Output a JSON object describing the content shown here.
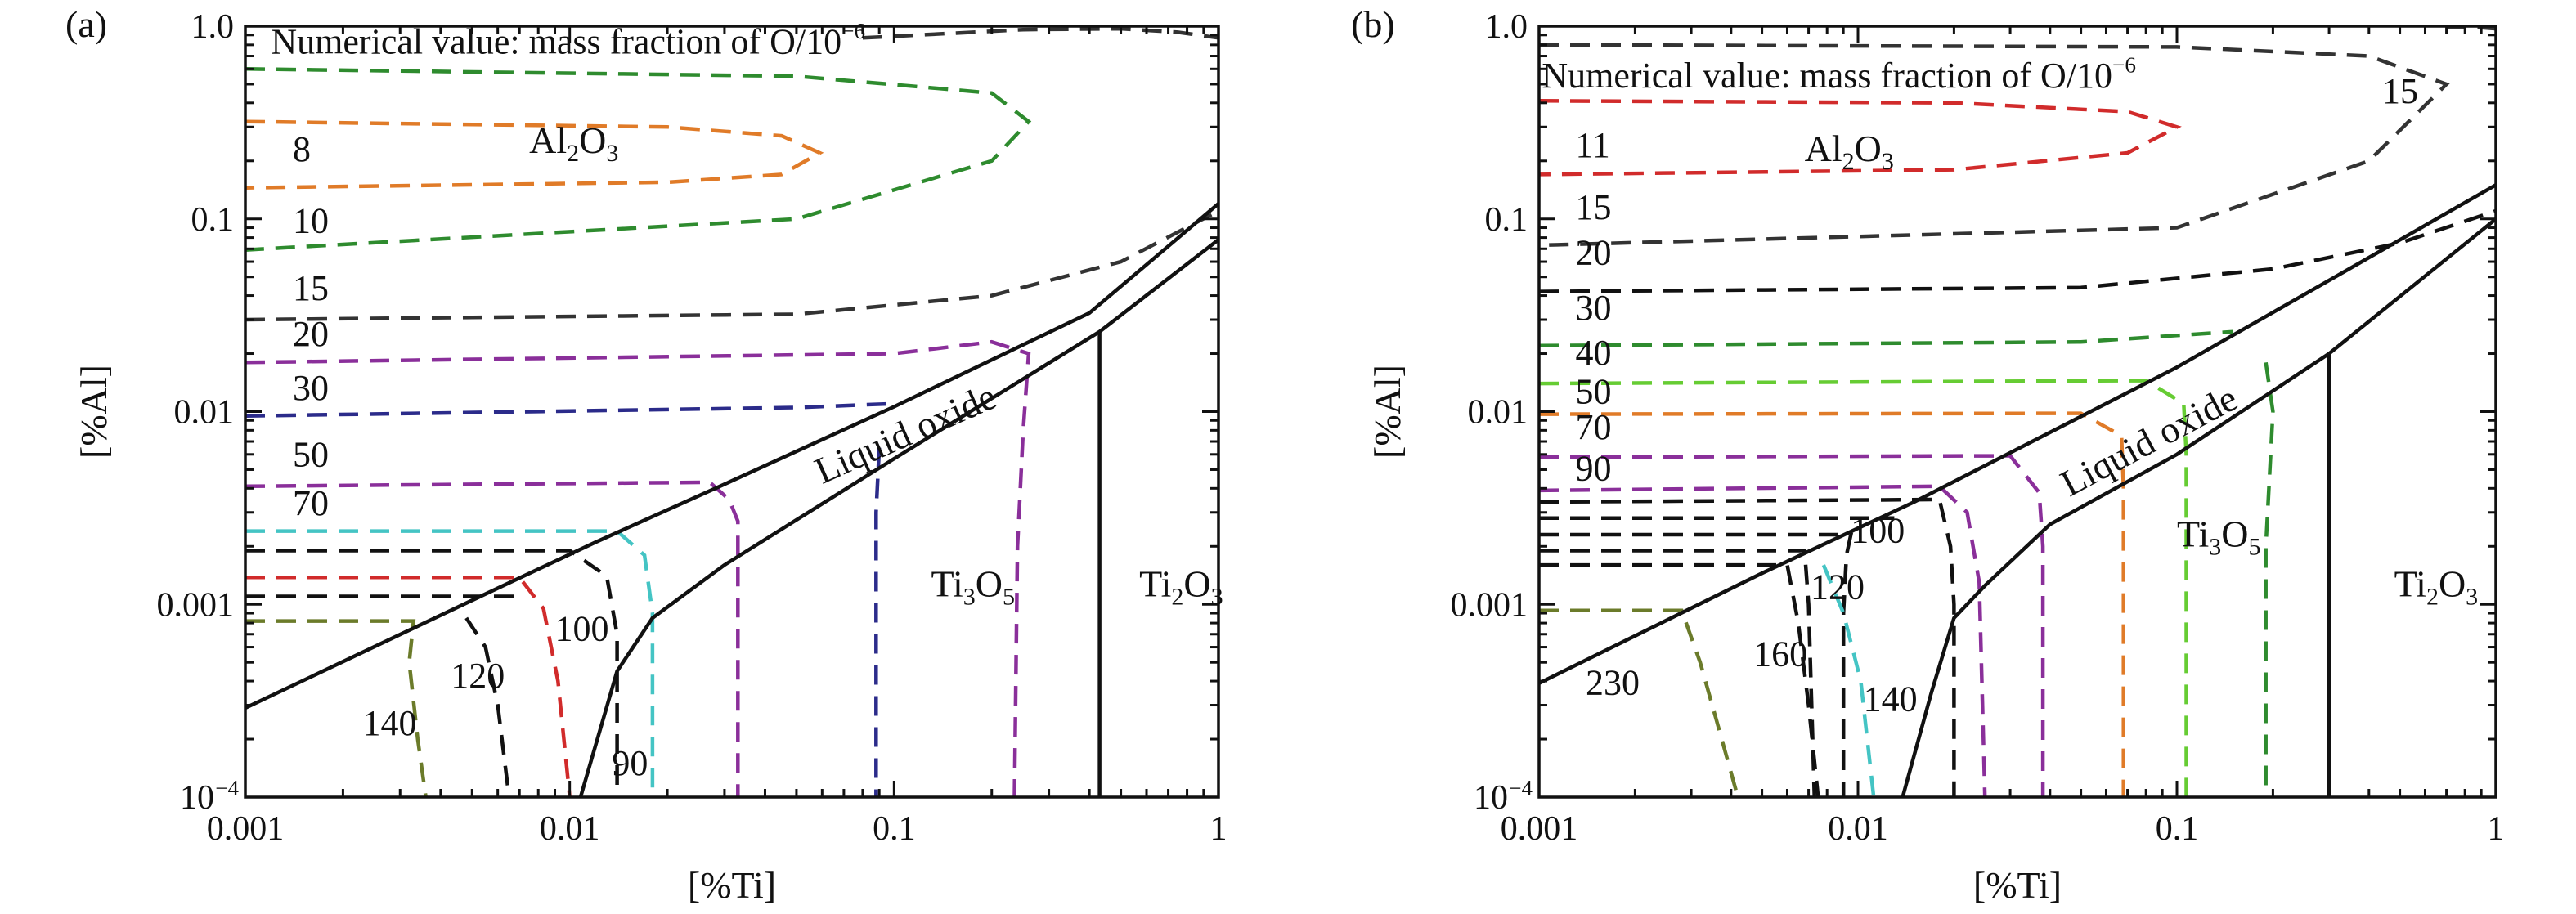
{
  "chart_data": [
    {
      "panel_label": "(a)",
      "type": "line",
      "subtype": "predominance-diagram-with-iso-oxygen-contours",
      "xlabel": "[%Ti]",
      "ylabel": "[%Al]",
      "xscale": "log",
      "yscale": "log",
      "xlim": [
        0.001,
        1
      ],
      "ylim": [
        0.0001,
        1
      ],
      "xticks": [
        {
          "value": 0.001,
          "label": "0.001"
        },
        {
          "value": 0.01,
          "label": "0.01"
        },
        {
          "value": 0.1,
          "label": "0.1"
        },
        {
          "value": 1,
          "label": "1"
        }
      ],
      "yticks": [
        {
          "value": 0.0001,
          "label": "10",
          "sup": "−4"
        },
        {
          "value": 0.001,
          "label": "0.001"
        },
        {
          "value": 0.01,
          "label": "0.01"
        },
        {
          "value": 0.1,
          "label": "0.1"
        },
        {
          "value": 1,
          "label": "1.0"
        }
      ],
      "annotation": {
        "text": "Numerical value: mass fraction of O/10",
        "sup": "−6",
        "x": 0.0012,
        "y": 0.72
      },
      "regions": [
        {
          "parts": [
            [
              "Al",
              ""
            ],
            [
              "2",
              "sub"
            ],
            [
              "O",
              ""
            ],
            [
              "3",
              "sub"
            ]
          ],
          "x": 0.0075,
          "y": 0.22
        },
        {
          "parts": [
            [
              "Liquid oxide",
              ""
            ]
          ],
          "x": 0.06,
          "y": 0.0042,
          "rotate": -24
        },
        {
          "parts": [
            [
              "Ti",
              ""
            ],
            [
              "3",
              "sub"
            ],
            [
              "O",
              ""
            ],
            [
              "5",
              "sub"
            ]
          ],
          "x": 0.13,
          "y": 0.0011
        },
        {
          "parts": [
            [
              "Ti",
              ""
            ],
            [
              "2",
              "sub"
            ],
            [
              "O",
              ""
            ],
            [
              "3",
              "sub"
            ]
          ],
          "x": 0.57,
          "y": 0.0011
        }
      ],
      "boundaries": [
        {
          "name": "upper",
          "x": [
            0.001,
            0.005,
            0.012,
            0.03,
            0.1,
            0.4,
            1
          ],
          "y": [
            0.00029,
            0.00105,
            0.0021,
            0.0042,
            0.0106,
            0.0325,
            0.12
          ]
        },
        {
          "name": "lower",
          "x": [
            0.0108,
            0.014,
            0.018,
            0.03,
            0.1,
            0.43,
            1
          ],
          "y": [
            0.0001,
            0.00045,
            0.00085,
            0.0016,
            0.0057,
            0.026,
            0.078
          ]
        },
        {
          "name": "Ti3O5-Ti2O3",
          "x": [
            0.43,
            0.43
          ],
          "y": [
            0.0001,
            0.026
          ]
        }
      ],
      "contours": [
        {
          "label": "8",
          "color": "#e07b28",
          "x": [
            0.001,
            0.02,
            0.045,
            0.059,
            0.045,
            0.02,
            0.001
          ],
          "y": [
            0.32,
            0.3,
            0.27,
            0.22,
            0.17,
            0.155,
            0.145
          ]
        },
        {
          "label": "",
          "color": "#2e8b2e",
          "x": [
            0.001,
            0.05,
            0.2,
            0.26,
            0.2,
            0.05,
            0.001
          ],
          "y": [
            0.6,
            0.55,
            0.45,
            0.32,
            0.2,
            0.1,
            0.069
          ]
        },
        {
          "label": "",
          "color": "#333333",
          "x": [
            0.08,
            0.25,
            0.5,
            0.75,
            1.0
          ],
          "y": [
            0.87,
            0.96,
            0.97,
            0.93,
            0.87
          ]
        },
        {
          "label": "10",
          "color": "#2e8b2e",
          "x": [],
          "y": []
        },
        {
          "label": "15",
          "color": "#333333",
          "x": [
            0.001,
            0.05,
            0.2,
            0.5,
            1.0
          ],
          "y": [
            0.03,
            0.032,
            0.04,
            0.06,
            0.11
          ]
        },
        {
          "label": "20",
          "color": "#8a2f9a",
          "x": [
            0.001,
            0.1,
            0.2,
            0.26,
            0.25,
            0.24,
            0.235
          ],
          "y": [
            0.018,
            0.02,
            0.023,
            0.02,
            0.008,
            0.002,
            0.0001
          ]
        },
        {
          "label": "30",
          "color": "#2b2b8a",
          "x": [
            0.001,
            0.05,
            0.1,
            0.1
          ],
          "y": [
            0.0095,
            0.0105,
            0.011,
            0.011
          ]
        },
        {
          "label": "",
          "color": "#2b2b8a",
          "x": [
            0.09,
            0.088,
            0.088
          ],
          "y": [
            0.0065,
            0.003,
            0.0001
          ]
        },
        {
          "label": "50",
          "color": "#8a2f9a",
          "x": [
            0.001,
            0.027,
            0.031,
            0.033,
            0.033
          ],
          "y": [
            0.0041,
            0.0043,
            0.0035,
            0.0027,
            0.0001
          ]
        },
        {
          "label": "70",
          "color": "#44c4c4",
          "x": [
            0.001,
            0.014,
            0.017,
            0.018,
            0.018
          ],
          "y": [
            0.0024,
            0.0024,
            0.0018,
            0.0009,
            0.0001
          ]
        },
        {
          "label": "90",
          "color": "#111111",
          "x": [
            0.001,
            0.01,
            0.013,
            0.014,
            0.014
          ],
          "y": [
            0.0019,
            0.0019,
            0.0014,
            0.0007,
            0.0001
          ]
        },
        {
          "label": "",
          "color": "#111111",
          "x": [
            0.001,
            0.007
          ],
          "y": [
            0.0011,
            0.0011
          ]
        },
        {
          "label": "100",
          "color": "#d12b2b",
          "x": [
            0.001,
            0.007,
            0.0083,
            0.0092,
            0.01
          ],
          "y": [
            0.00138,
            0.00138,
            0.00095,
            0.0004,
            0.0001
          ]
        },
        {
          "label": "120",
          "color": "#111111",
          "x": [
            0.0048,
            0.0055,
            0.006,
            0.0065
          ],
          "y": [
            0.00085,
            0.0006,
            0.0003,
            0.0001
          ]
        },
        {
          "label": "140",
          "color": "#6b7b2a",
          "x": [
            0.001,
            0.0033,
            0.0032,
            0.0034,
            0.0036
          ],
          "y": [
            0.00082,
            0.00082,
            0.0005,
            0.0002,
            0.0001
          ]
        }
      ],
      "contour_labels": [
        {
          "text": "8",
          "x": 0.0014,
          "y": 0.2
        },
        {
          "text": "10",
          "x": 0.0014,
          "y": 0.085
        },
        {
          "text": "15",
          "x": 0.0014,
          "y": 0.038
        },
        {
          "text": "20",
          "x": 0.0014,
          "y": 0.022
        },
        {
          "text": "30",
          "x": 0.0014,
          "y": 0.0115
        },
        {
          "text": "50",
          "x": 0.0014,
          "y": 0.0052
        },
        {
          "text": "70",
          "x": 0.0014,
          "y": 0.0029
        },
        {
          "text": "100",
          "x": 0.009,
          "y": 0.00065
        },
        {
          "text": "120",
          "x": 0.0043,
          "y": 0.00037
        },
        {
          "text": "140",
          "x": 0.0023,
          "y": 0.00021
        },
        {
          "text": "90",
          "x": 0.0135,
          "y": 0.00013
        }
      ]
    },
    {
      "panel_label": "(b)",
      "type": "line",
      "subtype": "predominance-diagram-with-iso-oxygen-contours",
      "xlabel": "[%Ti]",
      "ylabel": "[%Al]",
      "xscale": "log",
      "yscale": "log",
      "xlim": [
        0.001,
        1
      ],
      "ylim": [
        0.0001,
        1
      ],
      "xticks": [
        {
          "value": 0.001,
          "label": "0.001"
        },
        {
          "value": 0.01,
          "label": "0.01"
        },
        {
          "value": 0.1,
          "label": "0.1"
        },
        {
          "value": 1,
          "label": "1"
        }
      ],
      "yticks": [
        {
          "value": 0.0001,
          "label": "10",
          "sup": "−4"
        },
        {
          "value": 0.001,
          "label": "0.001"
        },
        {
          "value": 0.01,
          "label": "0.01"
        },
        {
          "value": 0.1,
          "label": "0.1"
        },
        {
          "value": 1,
          "label": "1.0"
        }
      ],
      "annotation": {
        "text": "Numerical value: mass fraction of O/10",
        "sup": "−6",
        "x": 0.00102,
        "y": 0.48
      },
      "regions": [
        {
          "parts": [
            [
              "Al",
              ""
            ],
            [
              "2",
              "sub"
            ],
            [
              "O",
              ""
            ],
            [
              "3",
              "sub"
            ]
          ],
          "x": 0.0068,
          "y": 0.2
        },
        {
          "parts": [
            [
              "Liquid oxide",
              ""
            ]
          ],
          "x": 0.046,
          "y": 0.0036,
          "rotate": -28
        },
        {
          "parts": [
            [
              "Ti",
              ""
            ],
            [
              "3",
              "sub"
            ],
            [
              "O",
              ""
            ],
            [
              "5",
              "sub"
            ]
          ],
          "x": 0.1,
          "y": 0.002
        },
        {
          "parts": [
            [
              "Ti",
              ""
            ],
            [
              "2",
              "sub"
            ],
            [
              "O",
              ""
            ],
            [
              "3",
              "sub"
            ]
          ],
          "x": 0.48,
          "y": 0.0011
        }
      ],
      "boundaries": [
        {
          "name": "upper",
          "x": [
            0.001,
            0.005,
            0.015,
            0.04,
            0.1,
            0.3,
            1
          ],
          "y": [
            0.00039,
            0.00145,
            0.0034,
            0.0078,
            0.017,
            0.048,
            0.15
          ]
        },
        {
          "name": "lower",
          "x": [
            0.0138,
            0.017,
            0.02,
            0.025,
            0.04,
            0.1,
            0.3,
            1
          ],
          "y": [
            0.0001,
            0.00035,
            0.00085,
            0.00125,
            0.0026,
            0.006,
            0.02,
            0.1
          ]
        },
        {
          "name": "Ti3O5-Ti2O3",
          "x": [
            0.3,
            0.3
          ],
          "y": [
            0.0001,
            0.02
          ]
        }
      ],
      "contours": [
        {
          "label": "11",
          "color": "#d12b2b",
          "x": [
            0.001,
            0.02,
            0.07,
            0.1,
            0.07,
            0.02,
            0.001
          ],
          "y": [
            0.41,
            0.4,
            0.36,
            0.3,
            0.22,
            0.18,
            0.17
          ]
        },
        {
          "label": "15",
          "color": "#333333",
          "x": [
            0.001,
            0.1,
            0.4,
            0.7,
            0.4,
            0.1,
            0.001
          ],
          "y": [
            0.8,
            0.78,
            0.7,
            0.5,
            0.2,
            0.09,
            0.073
          ]
        },
        {
          "label": "",
          "color": "#333333",
          "x": [
            0.7,
            0.85,
            1.0
          ],
          "y": [
            0.99,
            0.99,
            0.97
          ]
        },
        {
          "label": "20",
          "color": "#111111",
          "x": [
            0.001,
            0.05,
            0.2,
            0.5,
            1.0
          ],
          "y": [
            0.042,
            0.044,
            0.055,
            0.075,
            0.11
          ]
        },
        {
          "label": "30",
          "color": "#2e8b2e",
          "x": [
            0.001,
            0.05,
            0.15
          ],
          "y": [
            0.022,
            0.023,
            0.026
          ]
        },
        {
          "label": "",
          "color": "#2e8b2e",
          "x": [
            0.19,
            0.2,
            0.19,
            0.19
          ],
          "y": [
            0.018,
            0.01,
            0.002,
            0.0001
          ]
        },
        {
          "label": "40",
          "color": "#66cc33",
          "x": [
            0.001,
            0.08,
            0.105,
            0.107,
            0.107
          ],
          "y": [
            0.014,
            0.0145,
            0.011,
            0.006,
            0.0001
          ]
        },
        {
          "label": "50",
          "color": "#e07b28",
          "x": [
            0.001,
            0.05,
            0.067,
            0.068,
            0.068
          ],
          "y": [
            0.0097,
            0.0098,
            0.0075,
            0.004,
            0.0001
          ]
        },
        {
          "label": "70",
          "color": "#8a2f9a",
          "x": [
            0.001,
            0.03,
            0.037,
            0.038,
            0.038
          ],
          "y": [
            0.0058,
            0.0059,
            0.0038,
            0.002,
            0.0001
          ]
        },
        {
          "label": "90",
          "color": "#8a2f9a",
          "x": [
            0.001,
            0.018,
            0.022,
            0.024,
            0.025
          ],
          "y": [
            0.0039,
            0.0041,
            0.003,
            0.0013,
            0.0001
          ]
        },
        {
          "label": "",
          "color": "#111111",
          "x": [
            0.001,
            0.018,
            0.0195,
            0.02,
            0.02
          ],
          "y": [
            0.0034,
            0.0035,
            0.002,
            0.001,
            0.0001
          ]
        },
        {
          "label": "100",
          "color": "#111111",
          "x": [
            0.001,
            0.013
          ],
          "y": [
            0.0028,
            0.0028
          ]
        },
        {
          "label": "120",
          "color": "#111111",
          "x": [
            0.001,
            0.0095,
            0.0092,
            0.009,
            0.009
          ],
          "y": [
            0.0023,
            0.0023,
            0.0018,
            0.0009,
            0.0001
          ]
        },
        {
          "label": "",
          "color": "#44c4c4",
          "x": [
            0.0078,
            0.009,
            0.0102,
            0.0112
          ],
          "y": [
            0.0016,
            0.0009,
            0.0004,
            0.0001
          ]
        },
        {
          "label": "140",
          "color": "#111111",
          "x": [
            0.001,
            0.0068,
            0.007,
            0.0073
          ],
          "y": [
            0.0019,
            0.0019,
            0.001,
            0.0001
          ]
        },
        {
          "label": "160",
          "color": "#111111",
          "x": [
            0.001,
            0.006,
            0.0065,
            0.007,
            0.0075
          ],
          "y": [
            0.0016,
            0.0016,
            0.0008,
            0.0003,
            0.0001
          ]
        },
        {
          "label": "230",
          "color": "#6b7b2a",
          "x": [
            0.001,
            0.0028,
            0.0032,
            0.0036,
            0.0042
          ],
          "y": [
            0.00093,
            0.00093,
            0.0005,
            0.00025,
            0.0001
          ]
        }
      ],
      "contour_labels": [
        {
          "text": "11",
          "x": 0.0013,
          "y": 0.21
        },
        {
          "text": "15",
          "x": 0.44,
          "y": 0.4
        },
        {
          "text": "15",
          "x": 0.0013,
          "y": 0.1
        },
        {
          "text": "20",
          "x": 0.0013,
          "y": 0.058
        },
        {
          "text": "30",
          "x": 0.0013,
          "y": 0.03
        },
        {
          "text": "40",
          "x": 0.0013,
          "y": 0.0175
        },
        {
          "text": "50",
          "x": 0.0013,
          "y": 0.011
        },
        {
          "text": "70",
          "x": 0.0013,
          "y": 0.0072
        },
        {
          "text": "90",
          "x": 0.0013,
          "y": 0.0044
        },
        {
          "text": "100",
          "x": 0.0095,
          "y": 0.0021
        },
        {
          "text": "120",
          "x": 0.0071,
          "y": 0.00107
        },
        {
          "text": "160",
          "x": 0.0047,
          "y": 0.00048
        },
        {
          "text": "140",
          "x": 0.0104,
          "y": 0.00028
        },
        {
          "text": "230",
          "x": 0.0014,
          "y": 0.00034
        }
      ]
    }
  ]
}
